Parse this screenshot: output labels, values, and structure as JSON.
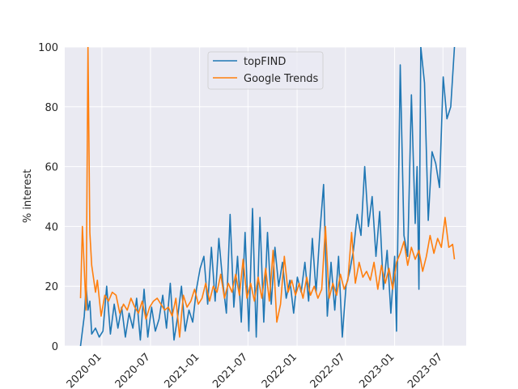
{
  "chart_data": {
    "type": "line",
    "title": "",
    "xlabel": "",
    "ylabel": "% interest",
    "ylim": [
      0,
      100
    ],
    "xlim": [
      "2019-08-15",
      "2023-09-26"
    ],
    "grid": true,
    "legend_position": "upper-center",
    "xticks": [
      "2020-01",
      "2020-07",
      "2021-01",
      "2021-07",
      "2022-01",
      "2022-07",
      "2023-01",
      "2023-07"
    ],
    "yticks": [
      0,
      20,
      40,
      60,
      80,
      100
    ],
    "series": [
      {
        "name": "topFIND",
        "color": "#1f77b4",
        "points": [
          [
            "2019-10-13",
            0
          ],
          [
            "2019-10-27",
            10
          ],
          [
            "2019-11-03",
            20
          ],
          [
            "2019-11-10",
            12
          ],
          [
            "2019-11-17",
            15
          ],
          [
            "2019-11-24",
            4
          ],
          [
            "2019-12-08",
            6
          ],
          [
            "2019-12-22",
            3
          ],
          [
            "2020-01-05",
            5
          ],
          [
            "2020-01-19",
            20
          ],
          [
            "2020-02-02",
            4
          ],
          [
            "2020-02-16",
            14
          ],
          [
            "2020-03-01",
            6
          ],
          [
            "2020-03-15",
            13
          ],
          [
            "2020-03-29",
            3
          ],
          [
            "2020-04-12",
            11
          ],
          [
            "2020-04-26",
            6
          ],
          [
            "2020-05-10",
            16
          ],
          [
            "2020-05-24",
            2
          ],
          [
            "2020-06-07",
            19
          ],
          [
            "2020-06-21",
            3
          ],
          [
            "2020-07-05",
            13
          ],
          [
            "2020-07-19",
            5
          ],
          [
            "2020-08-02",
            9
          ],
          [
            "2020-08-16",
            17
          ],
          [
            "2020-08-30",
            6
          ],
          [
            "2020-09-13",
            21
          ],
          [
            "2020-09-27",
            2
          ],
          [
            "2020-10-11",
            10
          ],
          [
            "2020-10-25",
            20
          ],
          [
            "2020-11-08",
            5
          ],
          [
            "2020-11-22",
            12
          ],
          [
            "2020-12-06",
            8
          ],
          [
            "2020-12-20",
            19
          ],
          [
            "2021-01-03",
            26
          ],
          [
            "2021-01-17",
            30
          ],
          [
            "2021-01-31",
            14
          ],
          [
            "2021-02-14",
            33
          ],
          [
            "2021-02-28",
            15
          ],
          [
            "2021-03-14",
            36
          ],
          [
            "2021-03-28",
            22
          ],
          [
            "2021-04-11",
            11
          ],
          [
            "2021-04-25",
            44
          ],
          [
            "2021-05-09",
            13
          ],
          [
            "2021-05-23",
            30
          ],
          [
            "2021-06-06",
            8
          ],
          [
            "2021-06-20",
            38
          ],
          [
            "2021-07-04",
            5
          ],
          [
            "2021-07-18",
            46
          ],
          [
            "2021-08-01",
            3
          ],
          [
            "2021-08-15",
            43
          ],
          [
            "2021-08-29",
            8
          ],
          [
            "2021-09-12",
            38
          ],
          [
            "2021-09-26",
            14
          ],
          [
            "2021-10-10",
            33
          ],
          [
            "2021-10-24",
            20
          ],
          [
            "2021-11-07",
            28
          ],
          [
            "2021-11-21",
            16
          ],
          [
            "2021-12-05",
            22
          ],
          [
            "2021-12-19",
            11
          ],
          [
            "2022-01-02",
            23
          ],
          [
            "2022-01-16",
            18
          ],
          [
            "2022-01-30",
            28
          ],
          [
            "2022-02-13",
            15
          ],
          [
            "2022-02-27",
            36
          ],
          [
            "2022-03-13",
            18
          ],
          [
            "2022-03-27",
            38
          ],
          [
            "2022-04-10",
            54
          ],
          [
            "2022-04-24",
            10
          ],
          [
            "2022-05-08",
            28
          ],
          [
            "2022-05-22",
            12
          ],
          [
            "2022-06-05",
            30
          ],
          [
            "2022-06-19",
            3
          ],
          [
            "2022-07-03",
            20
          ],
          [
            "2022-07-17",
            25
          ],
          [
            "2022-07-31",
            32
          ],
          [
            "2022-08-14",
            44
          ],
          [
            "2022-08-28",
            37
          ],
          [
            "2022-09-11",
            60
          ],
          [
            "2022-09-25",
            40
          ],
          [
            "2022-10-09",
            50
          ],
          [
            "2022-10-23",
            30
          ],
          [
            "2022-11-06",
            45
          ],
          [
            "2022-11-20",
            19
          ],
          [
            "2022-12-04",
            32
          ],
          [
            "2022-12-18",
            11
          ],
          [
            "2023-01-01",
            30
          ],
          [
            "2023-01-08",
            5
          ],
          [
            "2023-01-22",
            94
          ],
          [
            "2023-02-05",
            37
          ],
          [
            "2023-02-19",
            30
          ],
          [
            "2023-03-05",
            84
          ],
          [
            "2023-03-19",
            41
          ],
          [
            "2023-03-26",
            60
          ],
          [
            "2023-04-02",
            19
          ],
          [
            "2023-04-09",
            100
          ],
          [
            "2023-04-23",
            88
          ],
          [
            "2023-05-07",
            42
          ],
          [
            "2023-05-21",
            65
          ],
          [
            "2023-06-04",
            61
          ],
          [
            "2023-06-18",
            53
          ],
          [
            "2023-07-02",
            90
          ],
          [
            "2023-07-16",
            76
          ],
          [
            "2023-07-30",
            80
          ],
          [
            "2023-08-13",
            100
          ]
        ]
      },
      {
        "name": "Google Trends",
        "color": "#ff7f0e",
        "points": [
          [
            "2019-10-13",
            16
          ],
          [
            "2019-10-20",
            40
          ],
          [
            "2019-11-03",
            12
          ],
          [
            "2019-11-10",
            100
          ],
          [
            "2019-11-17",
            38
          ],
          [
            "2019-11-24",
            27
          ],
          [
            "2019-12-08",
            18
          ],
          [
            "2019-12-15",
            22
          ],
          [
            "2019-12-29",
            10
          ],
          [
            "2020-01-12",
            17
          ],
          [
            "2020-01-26",
            15
          ],
          [
            "2020-02-09",
            18
          ],
          [
            "2020-02-23",
            17
          ],
          [
            "2020-03-08",
            11
          ],
          [
            "2020-03-22",
            14
          ],
          [
            "2020-04-05",
            12
          ],
          [
            "2020-04-19",
            16
          ],
          [
            "2020-05-03",
            13
          ],
          [
            "2020-05-17",
            11
          ],
          [
            "2020-05-31",
            15
          ],
          [
            "2020-06-14",
            9
          ],
          [
            "2020-06-28",
            13
          ],
          [
            "2020-07-12",
            15
          ],
          [
            "2020-07-26",
            16
          ],
          [
            "2020-08-09",
            14
          ],
          [
            "2020-08-23",
            12
          ],
          [
            "2020-09-06",
            13
          ],
          [
            "2020-09-20",
            10
          ],
          [
            "2020-10-04",
            16
          ],
          [
            "2020-10-18",
            3
          ],
          [
            "2020-11-01",
            17
          ],
          [
            "2020-11-15",
            13
          ],
          [
            "2020-11-29",
            15
          ],
          [
            "2020-12-13",
            19
          ],
          [
            "2020-12-27",
            14
          ],
          [
            "2021-01-10",
            16
          ],
          [
            "2021-01-24",
            21
          ],
          [
            "2021-02-07",
            15
          ],
          [
            "2021-02-21",
            20
          ],
          [
            "2021-03-07",
            18
          ],
          [
            "2021-03-21",
            24
          ],
          [
            "2021-04-04",
            16
          ],
          [
            "2021-04-18",
            21
          ],
          [
            "2021-05-02",
            18
          ],
          [
            "2021-05-16",
            24
          ],
          [
            "2021-05-30",
            17
          ],
          [
            "2021-06-13",
            29
          ],
          [
            "2021-06-27",
            16
          ],
          [
            "2021-07-11",
            21
          ],
          [
            "2021-07-25",
            15
          ],
          [
            "2021-08-08",
            23
          ],
          [
            "2021-08-22",
            16
          ],
          [
            "2021-09-05",
            26
          ],
          [
            "2021-09-19",
            15
          ],
          [
            "2021-10-03",
            32
          ],
          [
            "2021-10-17",
            8
          ],
          [
            "2021-10-31",
            14
          ],
          [
            "2021-11-14",
            30
          ],
          [
            "2021-11-28",
            18
          ],
          [
            "2021-12-12",
            22
          ],
          [
            "2021-12-26",
            17
          ],
          [
            "2022-01-09",
            21
          ],
          [
            "2022-01-23",
            16
          ],
          [
            "2022-02-06",
            23
          ],
          [
            "2022-02-20",
            17
          ],
          [
            "2022-03-06",
            20
          ],
          [
            "2022-03-20",
            16
          ],
          [
            "2022-04-03",
            19
          ],
          [
            "2022-04-17",
            40
          ],
          [
            "2022-05-01",
            16
          ],
          [
            "2022-05-15",
            21
          ],
          [
            "2022-05-29",
            17
          ],
          [
            "2022-06-12",
            24
          ],
          [
            "2022-06-26",
            19
          ],
          [
            "2022-07-10",
            22
          ],
          [
            "2022-07-24",
            38
          ],
          [
            "2022-08-07",
            21
          ],
          [
            "2022-08-21",
            28
          ],
          [
            "2022-09-04",
            23
          ],
          [
            "2022-09-18",
            25
          ],
          [
            "2022-10-02",
            22
          ],
          [
            "2022-10-16",
            28
          ],
          [
            "2022-10-30",
            19
          ],
          [
            "2022-11-13",
            27
          ],
          [
            "2022-11-27",
            21
          ],
          [
            "2022-12-11",
            26
          ],
          [
            "2022-12-25",
            19
          ],
          [
            "2023-01-08",
            28
          ],
          [
            "2023-01-22",
            31
          ],
          [
            "2023-02-05",
            35
          ],
          [
            "2023-02-19",
            27
          ],
          [
            "2023-03-05",
            33
          ],
          [
            "2023-03-19",
            29
          ],
          [
            "2023-04-02",
            32
          ],
          [
            "2023-04-16",
            25
          ],
          [
            "2023-04-30",
            30
          ],
          [
            "2023-05-14",
            37
          ],
          [
            "2023-05-28",
            31
          ],
          [
            "2023-06-11",
            36
          ],
          [
            "2023-06-25",
            33
          ],
          [
            "2023-07-09",
            43
          ],
          [
            "2023-07-23",
            33
          ],
          [
            "2023-08-06",
            34
          ],
          [
            "2023-08-13",
            29
          ]
        ]
      }
    ]
  }
}
